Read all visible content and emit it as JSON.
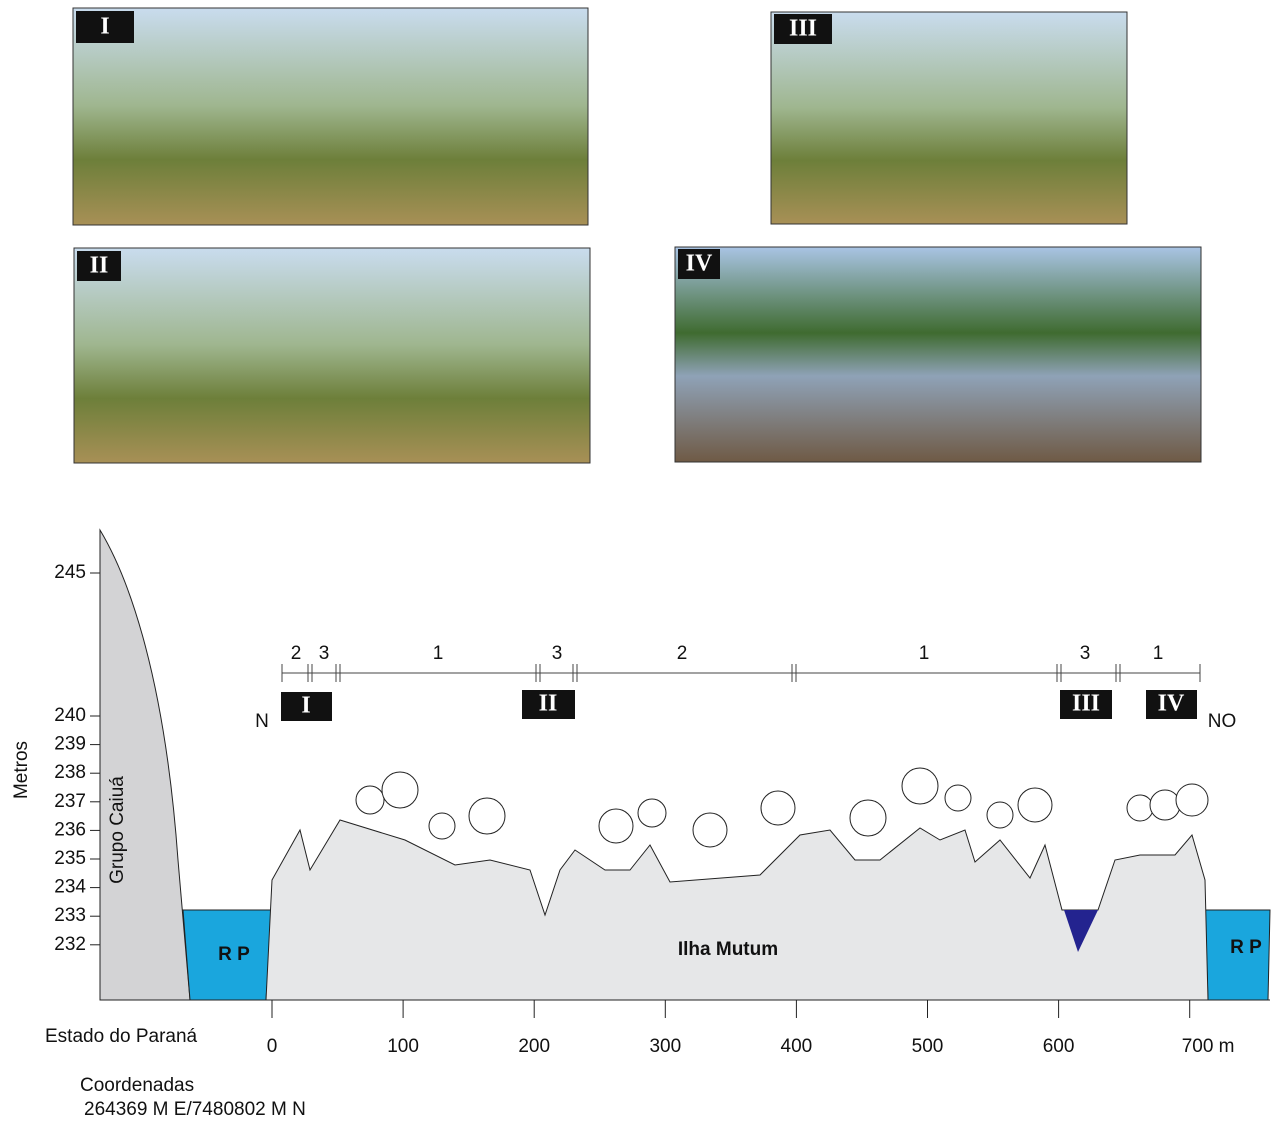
{
  "photos": [
    {
      "label": "I"
    },
    {
      "label": "II"
    },
    {
      "label": "III"
    },
    {
      "label": "IV"
    }
  ],
  "profile": {
    "y_axis_label": "Metros",
    "yticks": [
      232,
      233,
      234,
      235,
      236,
      237,
      238,
      239,
      240,
      245
    ],
    "xticks": [
      0,
      100,
      200,
      300,
      400,
      500,
      600,
      {
        "value": 700,
        "label": "700 m"
      }
    ],
    "x_axis_caption": "Estado do Paraná",
    "zones": [
      "2",
      "3",
      "1",
      "3",
      "2",
      "1",
      "3",
      "1"
    ],
    "markers": [
      "I",
      "II",
      "III",
      "IV"
    ],
    "start_label": "N",
    "end_label": "NO",
    "formation_label": "Grupo Caiuá",
    "river_left": "R P",
    "river_right": "R P",
    "island_label": "Ilha Mutum"
  },
  "coordinates": {
    "title": "Coordenadas",
    "value": "264369 M E/7480802 M N"
  }
}
